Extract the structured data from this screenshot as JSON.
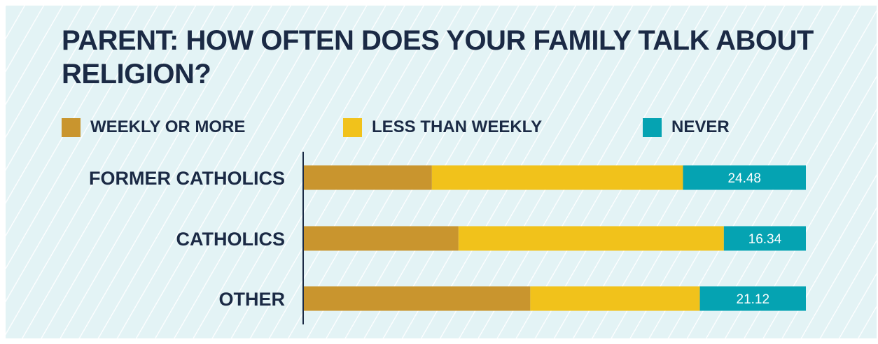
{
  "chart_data": {
    "type": "bar",
    "orientation": "horizontal",
    "stacked": true,
    "title": "PARENT: HOW OFTEN DOES YOUR FAMILY TALK ABOUT RELIGION?",
    "categories": [
      "FORMER CATHOLICS",
      "CATHOLICS",
      "OTHER"
    ],
    "series": [
      {
        "name": "WEEKLY OR MORE",
        "color": "#c9952e",
        "values": [
          25.5,
          30.8,
          45.1
        ]
      },
      {
        "name": "LESS THAN WEEKLY",
        "color": "#f1c21b",
        "values": [
          50.02,
          52.86,
          33.78
        ]
      },
      {
        "name": "NEVER",
        "color": "#05a3b2",
        "values": [
          24.48,
          16.34,
          21.12
        ],
        "labels": [
          "24.48",
          "16.34",
          "21.12"
        ]
      }
    ],
    "xlim": [
      0,
      100
    ],
    "legend_position": "top",
    "grid": false
  }
}
